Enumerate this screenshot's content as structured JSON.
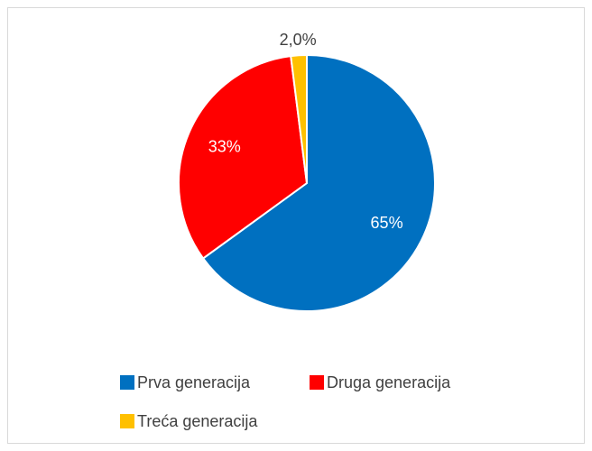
{
  "chart_data": {
    "type": "pie",
    "categories": [
      "Prva generacija",
      "Druga generacija",
      "Treća generacija"
    ],
    "values": [
      65,
      33,
      2.0
    ],
    "value_labels": [
      "65%",
      "33%",
      "2,0%"
    ],
    "colors": [
      "#0070C0",
      "#FF0000",
      "#FFC000"
    ],
    "legend": "bottom"
  }
}
